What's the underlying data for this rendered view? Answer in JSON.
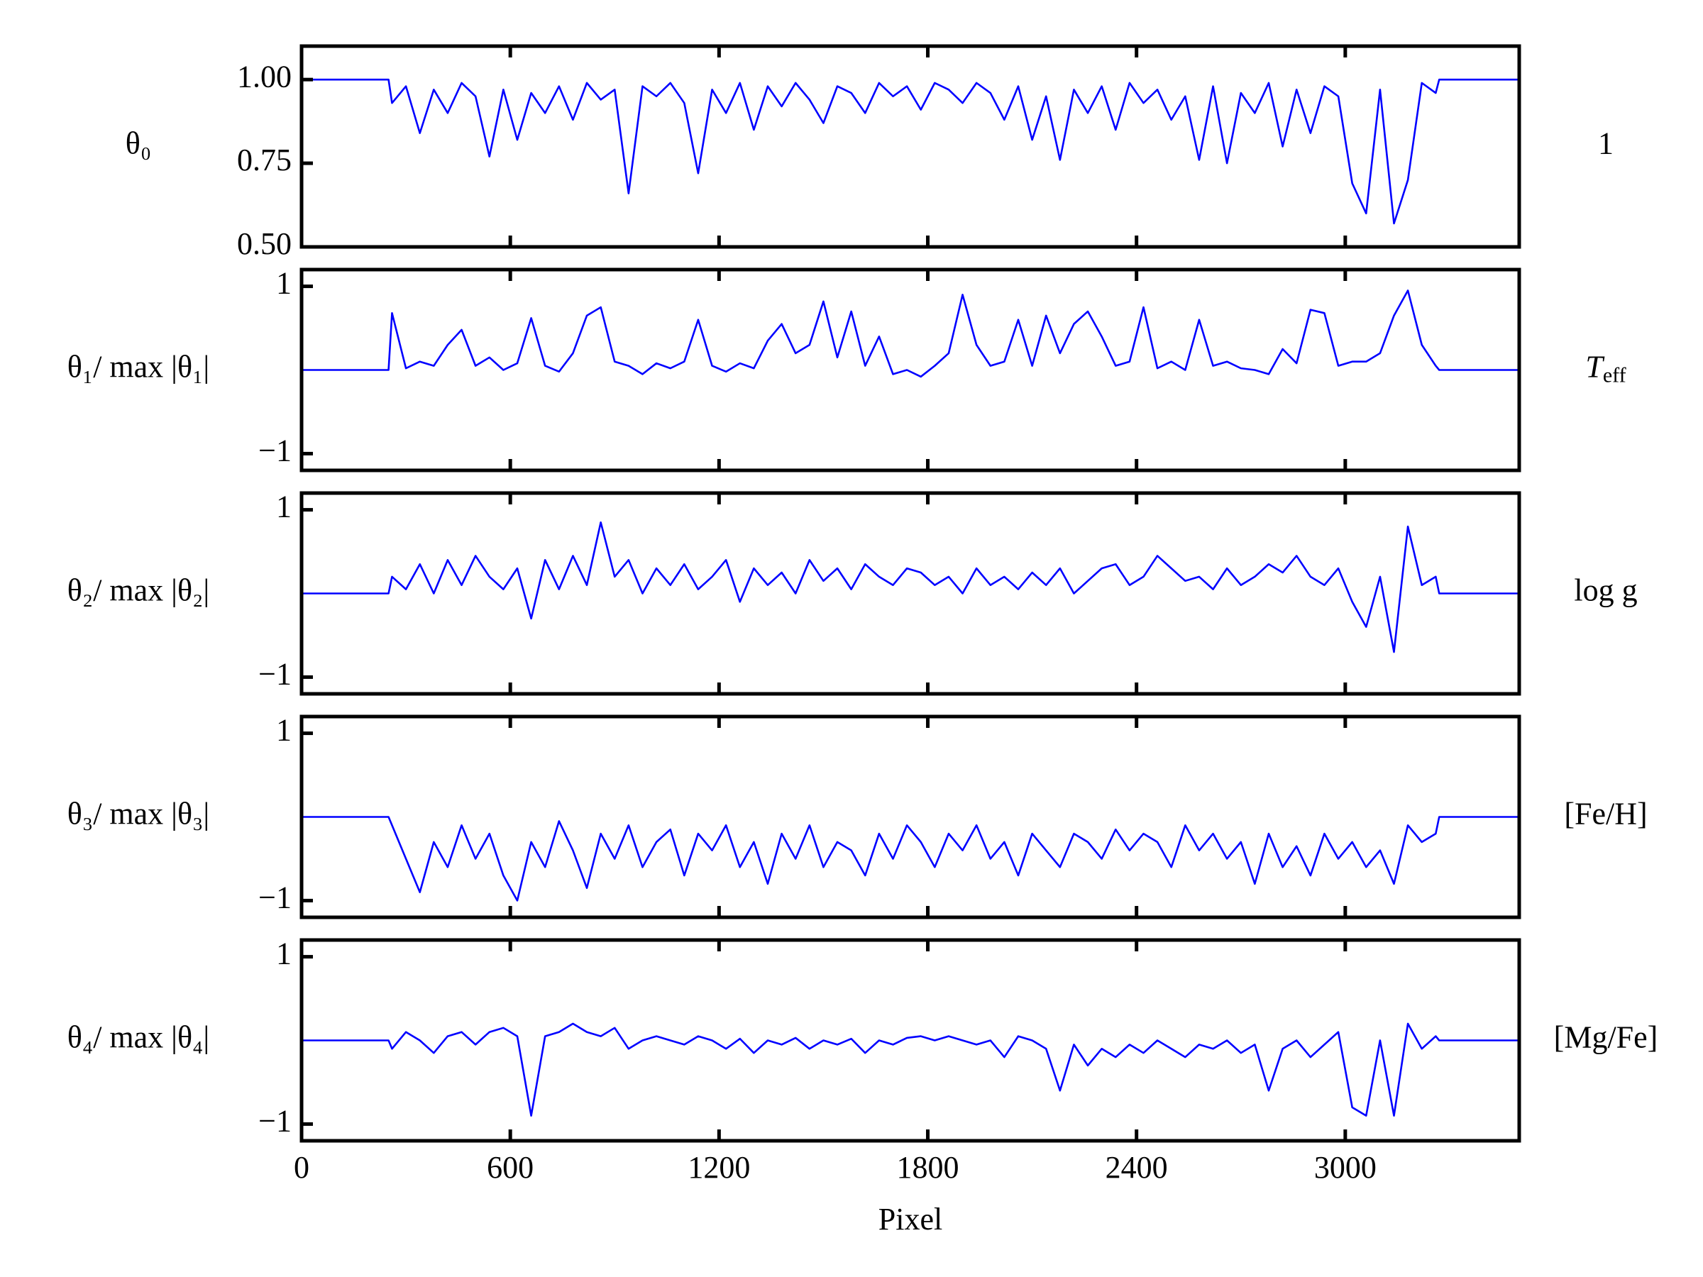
{
  "chart_data": [
    {
      "type": "line",
      "ylabel": "θ₀",
      "right_label": "1",
      "xlim": [
        0,
        3500
      ],
      "xticks": [
        0,
        600,
        1200,
        1800,
        2400,
        3000
      ],
      "show_xtick_labels": false,
      "ylim": [
        0.5,
        1.1
      ],
      "yticks": [
        {
          "value": 0.5,
          "label": "0.50"
        },
        {
          "value": 0.75,
          "label": "0.75"
        },
        {
          "value": 1.0,
          "label": "1.00"
        }
      ],
      "x": [
        0,
        250,
        260,
        300,
        340,
        380,
        420,
        460,
        500,
        540,
        580,
        620,
        660,
        700,
        740,
        780,
        820,
        860,
        900,
        940,
        980,
        1020,
        1060,
        1100,
        1140,
        1180,
        1220,
        1260,
        1300,
        1340,
        1380,
        1420,
        1460,
        1500,
        1540,
        1580,
        1620,
        1660,
        1700,
        1740,
        1780,
        1820,
        1860,
        1900,
        1940,
        1980,
        2020,
        2060,
        2100,
        2140,
        2180,
        2220,
        2260,
        2300,
        2340,
        2380,
        2420,
        2460,
        2500,
        2540,
        2580,
        2620,
        2660,
        2700,
        2740,
        2780,
        2820,
        2860,
        2900,
        2940,
        2980,
        3020,
        3060,
        3100,
        3140,
        3180,
        3220,
        3260,
        3270,
        3500
      ],
      "series": [
        {
          "color": "#0000ff",
          "values": [
            1.0,
            1.0,
            0.93,
            0.98,
            0.84,
            0.97,
            0.9,
            0.99,
            0.95,
            0.77,
            0.97,
            0.82,
            0.96,
            0.9,
            0.98,
            0.88,
            0.99,
            0.94,
            0.97,
            0.66,
            0.98,
            0.95,
            0.99,
            0.93,
            0.72,
            0.97,
            0.9,
            0.99,
            0.85,
            0.98,
            0.92,
            0.99,
            0.94,
            0.87,
            0.98,
            0.96,
            0.9,
            0.99,
            0.95,
            0.98,
            0.91,
            0.99,
            0.97,
            0.93,
            0.99,
            0.96,
            0.88,
            0.98,
            0.82,
            0.95,
            0.76,
            0.97,
            0.9,
            0.98,
            0.85,
            0.99,
            0.93,
            0.97,
            0.88,
            0.95,
            0.76,
            0.98,
            0.75,
            0.96,
            0.9,
            0.99,
            0.8,
            0.97,
            0.84,
            0.98,
            0.95,
            0.69,
            0.6,
            0.97,
            0.57,
            0.7,
            0.99,
            0.96,
            1.0,
            1.0
          ]
        }
      ]
    },
    {
      "type": "line",
      "ylabel": "θ₁/ max |θ₁|",
      "right_label": {
        "base": "T",
        "sub": "eff"
      },
      "xlim": [
        0,
        3500
      ],
      "xticks": [
        0,
        600,
        1200,
        1800,
        2400,
        3000
      ],
      "show_xtick_labels": false,
      "ylim": [
        -1.2,
        1.2
      ],
      "yticks": [
        {
          "value": -1,
          "label": "−1"
        },
        1
      ],
      "x": [
        0,
        250,
        260,
        300,
        340,
        380,
        420,
        460,
        500,
        540,
        580,
        620,
        660,
        700,
        740,
        780,
        820,
        860,
        900,
        940,
        980,
        1020,
        1060,
        1100,
        1140,
        1180,
        1220,
        1260,
        1300,
        1340,
        1380,
        1420,
        1460,
        1500,
        1540,
        1580,
        1620,
        1660,
        1700,
        1740,
        1780,
        1820,
        1860,
        1900,
        1940,
        1980,
        2020,
        2060,
        2100,
        2140,
        2180,
        2220,
        2260,
        2300,
        2340,
        2380,
        2420,
        2460,
        2500,
        2540,
        2580,
        2620,
        2660,
        2700,
        2740,
        2780,
        2820,
        2860,
        2900,
        2940,
        2980,
        3020,
        3060,
        3100,
        3140,
        3180,
        3220,
        3260,
        3270,
        3500
      ],
      "series": [
        {
          "color": "#0000ff",
          "values": [
            0,
            0,
            0.68,
            0.02,
            0.1,
            0.05,
            0.3,
            0.48,
            0.05,
            0.15,
            0.0,
            0.08,
            0.62,
            0.05,
            -0.02,
            0.2,
            0.65,
            0.75,
            0.1,
            0.05,
            -0.05,
            0.08,
            0.02,
            0.1,
            0.6,
            0.05,
            -0.02,
            0.08,
            0.02,
            0.35,
            0.55,
            0.2,
            0.3,
            0.82,
            0.15,
            0.7,
            0.05,
            0.4,
            -0.05,
            0.0,
            -0.08,
            0.05,
            0.2,
            0.9,
            0.3,
            0.05,
            0.1,
            0.6,
            0.05,
            0.65,
            0.2,
            0.55,
            0.7,
            0.4,
            0.05,
            0.1,
            0.75,
            0.02,
            0.1,
            0.0,
            0.6,
            0.05,
            0.1,
            0.02,
            0.0,
            -0.05,
            0.25,
            0.08,
            0.72,
            0.68,
            0.05,
            0.1,
            0.1,
            0.2,
            0.65,
            0.95,
            0.3,
            0.05,
            0,
            0
          ]
        }
      ]
    },
    {
      "type": "line",
      "ylabel": "θ₂/ max |θ₂|",
      "right_label": "log g",
      "xlim": [
        0,
        3500
      ],
      "xticks": [
        0,
        600,
        1200,
        1800,
        2400,
        3000
      ],
      "show_xtick_labels": false,
      "ylim": [
        -1.2,
        1.2
      ],
      "yticks": [
        {
          "value": -1,
          "label": "−1"
        },
        1
      ],
      "x": [
        0,
        250,
        260,
        300,
        340,
        380,
        420,
        460,
        500,
        540,
        580,
        620,
        660,
        700,
        740,
        780,
        820,
        860,
        900,
        940,
        980,
        1020,
        1060,
        1100,
        1140,
        1180,
        1220,
        1260,
        1300,
        1340,
        1380,
        1420,
        1460,
        1500,
        1540,
        1580,
        1620,
        1660,
        1700,
        1740,
        1780,
        1820,
        1860,
        1900,
        1940,
        1980,
        2020,
        2060,
        2100,
        2140,
        2180,
        2220,
        2260,
        2300,
        2340,
        2380,
        2420,
        2460,
        2500,
        2540,
        2580,
        2620,
        2660,
        2700,
        2740,
        2780,
        2820,
        2860,
        2900,
        2940,
        2980,
        3020,
        3060,
        3100,
        3140,
        3180,
        3220,
        3260,
        3270,
        3500
      ],
      "series": [
        {
          "color": "#0000ff",
          "values": [
            0,
            0,
            0.2,
            0.05,
            0.35,
            0.0,
            0.4,
            0.1,
            0.45,
            0.2,
            0.05,
            0.3,
            -0.3,
            0.4,
            0.05,
            0.45,
            0.1,
            0.85,
            0.2,
            0.4,
            0.0,
            0.3,
            0.1,
            0.35,
            0.05,
            0.2,
            0.4,
            -0.1,
            0.3,
            0.1,
            0.25,
            0.0,
            0.4,
            0.15,
            0.3,
            0.05,
            0.35,
            0.2,
            0.1,
            0.3,
            0.25,
            0.1,
            0.2,
            0.0,
            0.3,
            0.1,
            0.2,
            0.05,
            0.25,
            0.1,
            0.3,
            0.0,
            0.15,
            0.3,
            0.35,
            0.1,
            0.2,
            0.45,
            0.3,
            0.15,
            0.2,
            0.05,
            0.3,
            0.1,
            0.2,
            0.35,
            0.25,
            0.45,
            0.2,
            0.1,
            0.3,
            -0.1,
            -0.4,
            0.2,
            -0.7,
            0.8,
            0.1,
            0.2,
            0,
            0
          ]
        }
      ]
    },
    {
      "type": "line",
      "ylabel": "θ₃/ max |θ₃|",
      "right_label": "[Fe/H]",
      "xlim": [
        0,
        3500
      ],
      "xticks": [
        0,
        600,
        1200,
        1800,
        2400,
        3000
      ],
      "show_xtick_labels": false,
      "ylim": [
        -1.2,
        1.2
      ],
      "yticks": [
        {
          "value": -1,
          "label": "−1"
        },
        1
      ],
      "x": [
        0,
        250,
        260,
        300,
        340,
        380,
        420,
        460,
        500,
        540,
        580,
        620,
        660,
        700,
        740,
        780,
        820,
        860,
        900,
        940,
        980,
        1020,
        1060,
        1100,
        1140,
        1180,
        1220,
        1260,
        1300,
        1340,
        1380,
        1420,
        1460,
        1500,
        1540,
        1580,
        1620,
        1660,
        1700,
        1740,
        1780,
        1820,
        1860,
        1900,
        1940,
        1980,
        2020,
        2060,
        2100,
        2140,
        2180,
        2220,
        2260,
        2300,
        2340,
        2380,
        2420,
        2460,
        2500,
        2540,
        2580,
        2620,
        2660,
        2700,
        2740,
        2780,
        2820,
        2860,
        2900,
        2940,
        2980,
        3020,
        3060,
        3100,
        3140,
        3180,
        3220,
        3260,
        3270,
        3500
      ],
      "series": [
        {
          "color": "#0000ff",
          "values": [
            0,
            0,
            -0.1,
            -0.5,
            -0.9,
            -0.3,
            -0.6,
            -0.1,
            -0.5,
            -0.2,
            -0.7,
            -1.0,
            -0.3,
            -0.6,
            -0.05,
            -0.4,
            -0.85,
            -0.2,
            -0.5,
            -0.1,
            -0.6,
            -0.3,
            -0.15,
            -0.7,
            -0.2,
            -0.4,
            -0.1,
            -0.6,
            -0.3,
            -0.8,
            -0.2,
            -0.5,
            -0.1,
            -0.6,
            -0.3,
            -0.4,
            -0.7,
            -0.2,
            -0.5,
            -0.1,
            -0.3,
            -0.6,
            -0.2,
            -0.4,
            -0.1,
            -0.5,
            -0.3,
            -0.7,
            -0.2,
            -0.4,
            -0.6,
            -0.2,
            -0.3,
            -0.5,
            -0.15,
            -0.4,
            -0.2,
            -0.3,
            -0.6,
            -0.1,
            -0.4,
            -0.2,
            -0.5,
            -0.3,
            -0.8,
            -0.2,
            -0.6,
            -0.35,
            -0.7,
            -0.2,
            -0.5,
            -0.3,
            -0.6,
            -0.4,
            -0.8,
            -0.1,
            -0.3,
            -0.2,
            0,
            0
          ]
        }
      ]
    },
    {
      "type": "line",
      "ylabel": "θ₄/ max |θ₄|",
      "right_label": "[Mg/Fe]",
      "xlabel": "Pixel",
      "xlim": [
        0,
        3500
      ],
      "xticks": [
        0,
        600,
        1200,
        1800,
        2400,
        3000
      ],
      "show_xtick_labels": true,
      "ylim": [
        -1.2,
        1.2
      ],
      "yticks": [
        {
          "value": -1,
          "label": "−1"
        },
        1
      ],
      "x": [
        0,
        250,
        260,
        300,
        340,
        380,
        420,
        460,
        500,
        540,
        580,
        620,
        660,
        700,
        740,
        780,
        820,
        860,
        900,
        940,
        980,
        1020,
        1060,
        1100,
        1140,
        1180,
        1220,
        1260,
        1300,
        1340,
        1380,
        1420,
        1460,
        1500,
        1540,
        1580,
        1620,
        1660,
        1700,
        1740,
        1780,
        1820,
        1860,
        1900,
        1940,
        1980,
        2020,
        2060,
        2100,
        2140,
        2180,
        2220,
        2260,
        2300,
        2340,
        2380,
        2420,
        2460,
        2500,
        2540,
        2580,
        2620,
        2660,
        2700,
        2740,
        2780,
        2820,
        2860,
        2900,
        2940,
        2980,
        3020,
        3060,
        3100,
        3140,
        3180,
        3220,
        3260,
        3270,
        3500
      ],
      "series": [
        {
          "color": "#0000ff",
          "values": [
            0,
            0,
            -0.1,
            0.1,
            0.0,
            -0.15,
            0.05,
            0.1,
            -0.05,
            0.1,
            0.15,
            0.05,
            -0.9,
            0.05,
            0.1,
            0.2,
            0.1,
            0.05,
            0.15,
            -0.1,
            0.0,
            0.05,
            0.0,
            -0.05,
            0.05,
            0.0,
            -0.1,
            0.02,
            -0.15,
            0.0,
            -0.05,
            0.03,
            -0.1,
            0.0,
            -0.05,
            0.02,
            -0.15,
            0.0,
            -0.05,
            0.03,
            0.05,
            0.0,
            0.05,
            0.0,
            -0.05,
            0.0,
            -0.2,
            0.05,
            0.0,
            -0.1,
            -0.6,
            -0.05,
            -0.3,
            -0.1,
            -0.2,
            -0.05,
            -0.15,
            0.0,
            -0.1,
            -0.2,
            -0.05,
            -0.1,
            0.0,
            -0.15,
            -0.05,
            -0.6,
            -0.1,
            0.0,
            -0.2,
            -0.05,
            0.1,
            -0.8,
            -0.9,
            0.0,
            -0.9,
            0.2,
            -0.1,
            0.05,
            0,
            0
          ]
        }
      ]
    }
  ]
}
